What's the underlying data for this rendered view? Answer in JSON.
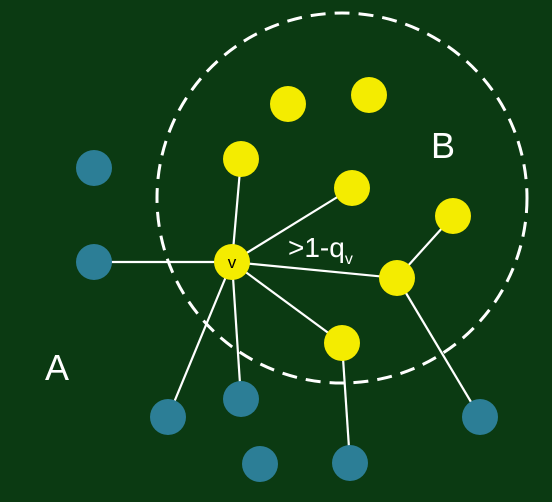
{
  "labels": {
    "region_a": "A",
    "region_b": "B",
    "center_node": "v",
    "threshold_main": ">1-q",
    "threshold_sub": "v"
  },
  "colors": {
    "background": "#0b3a12",
    "blue_node": "#2c7e96",
    "yellow_node": "#f4ec00",
    "edge": "#ffffff",
    "boundary": "#ffffff"
  }
}
